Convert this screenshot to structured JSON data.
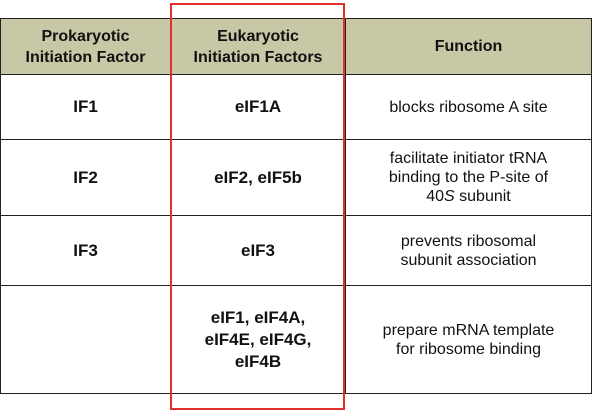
{
  "headers": {
    "prokaryotic": [
      "Prokaryotic",
      "Initiation Factor"
    ],
    "eukaryotic": [
      "Eukaryotic",
      "Initiation Factors"
    ],
    "function": "Function"
  },
  "rows": [
    {
      "prokaryotic": "IF1",
      "eukaryotic": [
        "eIF1A"
      ],
      "function": [
        "blocks ribosome A site"
      ]
    },
    {
      "prokaryotic": "IF2",
      "eukaryotic": [
        "eIF2, eIF5b"
      ],
      "function": [
        "facilitate initiator tRNA",
        "binding to the P-site of",
        "40",
        "S",
        " subunit"
      ]
    },
    {
      "prokaryotic": "IF3",
      "eukaryotic": [
        "eIF3"
      ],
      "function": [
        "prevents ribosomal",
        "subunit association"
      ]
    },
    {
      "prokaryotic": "",
      "eukaryotic": [
        "eIF1, eIF4A,",
        "eIF4E, eIF4G,",
        "eIF4B"
      ],
      "function": [
        "prepare mRNA template",
        "for ribosome binding"
      ]
    }
  ],
  "colors": {
    "header_bg": "#c8c7a6",
    "highlight_border": "#e0302c"
  }
}
